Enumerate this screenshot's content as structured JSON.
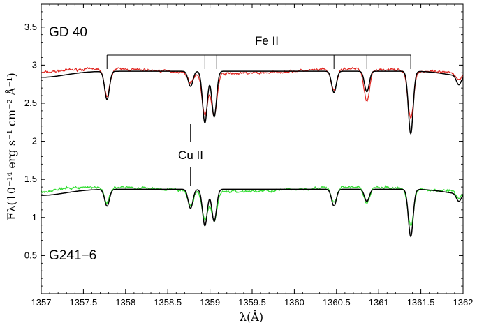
{
  "chart_data": {
    "type": "line",
    "title": "",
    "xlabel": "λ(Å)",
    "ylabel": "Fλ(10⁻¹⁴ erg s⁻¹ cm⁻² Å⁻¹)",
    "xlim": [
      1357,
      1362
    ],
    "ylim": [
      0,
      3.8
    ],
    "x_ticks": [
      "1357",
      "1357.5",
      "1358",
      "1358.5",
      "1359",
      "1359.5",
      "1360",
      "1360.5",
      "1361",
      "1361.5",
      "1362"
    ],
    "y_ticks": [
      "0.5",
      "1",
      "1.5",
      "2",
      "2.5",
      "3",
      "3.5"
    ],
    "grid": false,
    "legend": "none",
    "colors": {
      "gd40_observed": "#e0241f",
      "g241_observed": "#33dd33",
      "model": "#000000"
    },
    "stars": [
      {
        "label": "GD 40",
        "continuum": 2.92,
        "label_y": 3.45
      },
      {
        "label": "G241−6",
        "continuum": 1.37,
        "label_y": 0.45
      }
    ],
    "line_ids": [
      {
        "label": "Fe II",
        "wavelengths": [
          1357.78,
          1358.94,
          1359.08,
          1360.47,
          1360.86,
          1361.38
        ]
      },
      {
        "label": "Cu II",
        "wavelengths": [
          1358.77
        ]
      }
    ],
    "absorption_features": {
      "gd40": [
        {
          "x": 1357.78,
          "model_depth": 0.37,
          "obs_depth": 0.35
        },
        {
          "x": 1358.77,
          "model_depth": 0.2,
          "obs_depth": 0.13
        },
        {
          "x": 1358.94,
          "model_depth": 0.68,
          "obs_depth": 0.55
        },
        {
          "x": 1359.05,
          "model_depth": 0.6,
          "obs_depth": 0.55
        },
        {
          "x": 1360.47,
          "model_depth": 0.28,
          "obs_depth": 0.28
        },
        {
          "x": 1360.86,
          "model_depth": 0.27,
          "obs_depth": 0.42
        },
        {
          "x": 1361.38,
          "model_depth": 0.82,
          "obs_depth": 0.62
        },
        {
          "x": 1361.95,
          "model_depth": 0.12,
          "obs_depth": 0.08
        }
      ],
      "g241": [
        {
          "x": 1357.78,
          "model_depth": 0.22,
          "obs_depth": 0.2
        },
        {
          "x": 1358.77,
          "model_depth": 0.25,
          "obs_depth": 0.2
        },
        {
          "x": 1358.94,
          "model_depth": 0.48,
          "obs_depth": 0.38
        },
        {
          "x": 1359.05,
          "model_depth": 0.42,
          "obs_depth": 0.38
        },
        {
          "x": 1360.47,
          "model_depth": 0.22,
          "obs_depth": 0.2
        },
        {
          "x": 1360.86,
          "model_depth": 0.16,
          "obs_depth": 0.22
        },
        {
          "x": 1361.38,
          "model_depth": 0.62,
          "obs_depth": 0.48
        },
        {
          "x": 1361.95,
          "model_depth": 0.1,
          "obs_depth": 0.08
        }
      ]
    }
  }
}
